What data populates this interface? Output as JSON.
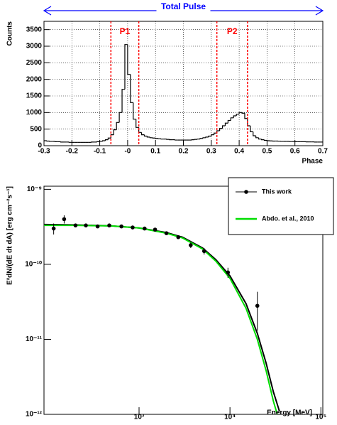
{
  "chart_data": [
    {
      "type": "histogram",
      "header": "Total Pulse",
      "header_color": "#0000ff",
      "ylabel": "Counts",
      "xlabel": "Phase",
      "color": "#000000",
      "grid": true,
      "region_color": "#ff0000",
      "regions": [
        {
          "label": "P1",
          "edges": [
            -0.06,
            0.04
          ]
        },
        {
          "label": "P2",
          "edges": [
            0.32,
            0.43
          ]
        }
      ],
      "bins": [
        -0.3,
        -0.29,
        -0.28,
        -0.27,
        -0.26,
        -0.25,
        -0.24,
        -0.23,
        -0.22,
        -0.21,
        -0.2,
        -0.19,
        -0.18,
        -0.17,
        -0.16,
        -0.15,
        -0.14,
        -0.13,
        -0.12,
        -0.11,
        -0.1,
        -0.09,
        -0.08,
        -0.07,
        -0.06,
        -0.05,
        -0.04,
        -0.03,
        -0.02,
        -0.01,
        0,
        0.01,
        0.02,
        0.03,
        0.04,
        0.05,
        0.06,
        0.07,
        0.08,
        0.09,
        0.1,
        0.11,
        0.12,
        0.13,
        0.14,
        0.15,
        0.16,
        0.17,
        0.18,
        0.19,
        0.2,
        0.21,
        0.22,
        0.23,
        0.24,
        0.25,
        0.26,
        0.27,
        0.28,
        0.29,
        0.3,
        0.31,
        0.32,
        0.33,
        0.34,
        0.35,
        0.36,
        0.37,
        0.38,
        0.39,
        0.4,
        0.41,
        0.42,
        0.43,
        0.44,
        0.45,
        0.46,
        0.47,
        0.48,
        0.49,
        0.5,
        0.51,
        0.52,
        0.53,
        0.54,
        0.55,
        0.56,
        0.57,
        0.58,
        0.59,
        0.6,
        0.61,
        0.62,
        0.63,
        0.64,
        0.65,
        0.66,
        0.67,
        0.68,
        0.69,
        0.7
      ],
      "values": [
        150,
        140,
        130,
        130,
        120,
        120,
        110,
        110,
        110,
        100,
        100,
        100,
        100,
        100,
        100,
        100,
        100,
        110,
        110,
        120,
        130,
        150,
        180,
        230,
        330,
        480,
        700,
        1000,
        1700,
        3050,
        2150,
        1300,
        800,
        550,
        400,
        330,
        290,
        260,
        240,
        230,
        220,
        210,
        200,
        200,
        190,
        180,
        180,
        170,
        170,
        170,
        170,
        170,
        170,
        180,
        190,
        200,
        220,
        240,
        260,
        290,
        330,
        380,
        450,
        520,
        600,
        680,
        760,
        840,
        900,
        950,
        1000,
        980,
        820,
        600,
        420,
        300,
        240,
        200,
        180,
        160,
        150,
        145,
        140,
        140,
        135,
        130,
        130,
        130,
        125,
        125,
        120,
        120,
        120,
        120,
        115,
        115,
        115,
        110,
        110,
        110
      ],
      "xlim": [
        -0.3,
        0.7
      ],
      "ylim": [
        0,
        3750
      ],
      "xticks": [
        -0.3,
        -0.2,
        -0.1,
        {
          "value": 0,
          "label": "-0"
        },
        0.1,
        0.2,
        0.3,
        0.4,
        0.5,
        0.6,
        0.7
      ],
      "yticks": [
        0,
        500,
        1000,
        1500,
        2000,
        2500,
        3000,
        3500
      ]
    },
    {
      "type": "line",
      "xlabel": "Energy [MeV]",
      "ylabel": "E²dN/(dE dt dA) [erg cm⁻²s⁻¹]",
      "xscale": "log",
      "yscale": "log",
      "legend": "upper right",
      "xlim": [
        90,
        105000
      ],
      "ylim": [
        1e-12,
        1.1e-09
      ],
      "xticks": [
        {
          "value": 1000,
          "label": "10³"
        },
        {
          "value": 10000,
          "label": "10⁴"
        },
        {
          "value": 100000,
          "label": "10⁵"
        }
      ],
      "yticks": [
        {
          "value": 1e-12,
          "label": "10⁻¹²"
        },
        {
          "value": 1e-11,
          "label": "10⁻¹¹"
        },
        {
          "value": 1e-10,
          "label": "10⁻¹⁰"
        },
        {
          "value": 1e-09,
          "label": "10⁻⁹"
        }
      ],
      "series": [
        {
          "name": "This work",
          "color": "#000000",
          "x": [
            90,
            200,
            500,
            1000,
            2000,
            3000,
            5000,
            7000,
            10000,
            15000,
            20000,
            25000,
            30000,
            35000
          ],
          "values": [
            3.4e-10,
            3.35e-10,
            3.25e-10,
            3.05e-10,
            2.65e-10,
            2.3e-10,
            1.65e-10,
            1.15e-10,
            7e-11,
            3e-11,
            1.2e-11,
            4.8e-12,
            2e-12,
            1.1e-12
          ],
          "points": {
            "x": [
              115,
              150,
              200,
              260,
              350,
              470,
              640,
              850,
              1150,
              1500,
              2000,
              2700,
              3700,
              5200,
              9500,
              20000
            ],
            "values": [
              3e-10,
              4e-10,
              3.3e-10,
              3.3e-10,
              3.2e-10,
              3.3e-10,
              3.2e-10,
              3.1e-10,
              3e-10,
              2.9e-10,
              2.6e-10,
              2.3e-10,
              1.8e-10,
              1.5e-10,
              7.8e-11,
              2.8e-11
            ],
            "yerr": [
              5e-11,
              5e-11,
              1.5e-11,
              1e-11,
              1e-11,
              1e-11,
              1e-11,
              1e-11,
              1e-11,
              1e-11,
              1e-11,
              1e-11,
              1.5e-11,
              1.5e-11,
              1.2e-11,
              1.5e-11
            ]
          }
        },
        {
          "name": "Abdo. et al., 2010",
          "color": "#00dd00",
          "x": [
            90,
            200,
            500,
            1000,
            2000,
            3000,
            5000,
            7000,
            10000,
            15000,
            20000,
            25000,
            30000,
            35000
          ],
          "values": [
            3.3e-10,
            3.3e-10,
            3.25e-10,
            3.05e-10,
            2.6e-10,
            2.25e-10,
            1.6e-10,
            1.1e-10,
            6.5e-11,
            2.6e-11,
            1e-11,
            3.8e-12,
            1.5e-12,
            8e-13
          ]
        }
      ]
    }
  ]
}
